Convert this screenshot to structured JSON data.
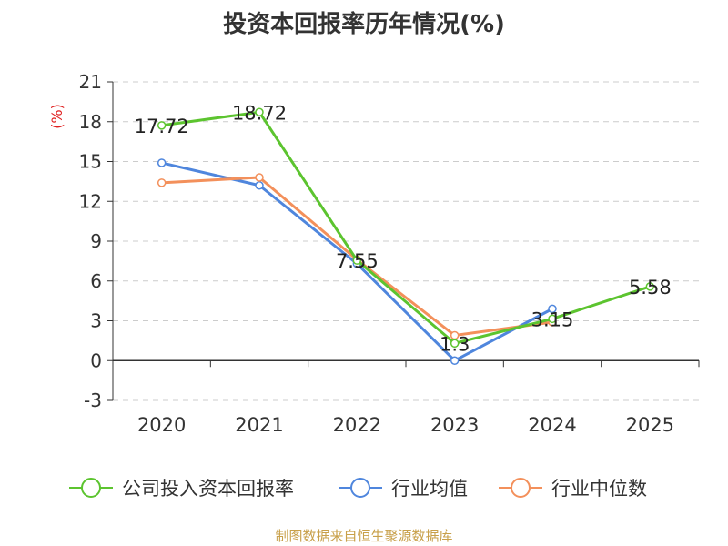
{
  "chart_data": {
    "type": "line",
    "title": "投资本回报率历年情况(%)",
    "ylabel": "(%)",
    "categories": [
      "2020",
      "2021",
      "2022",
      "2023",
      "2024",
      "2025"
    ],
    "ylim": [
      -3,
      21
    ],
    "yticks": [
      "-3",
      "0",
      "3",
      "6",
      "9",
      "12",
      "15",
      "18",
      "21"
    ],
    "grid": true,
    "legend_position": "bottom",
    "series": [
      {
        "name": "公司投入资本回报率",
        "color": "#5cc42f",
        "values": [
          17.72,
          18.72,
          7.55,
          1.3,
          3.15,
          5.58
        ],
        "labels": [
          "17.72",
          "18.72",
          "7.55",
          "1.3",
          "3.15",
          "5.58"
        ]
      },
      {
        "name": "行业均值",
        "color": "#4f86dd",
        "values": [
          14.9,
          13.2,
          7.3,
          0.0,
          3.9,
          null
        ]
      },
      {
        "name": "行业中位数",
        "color": "#f3905b",
        "values": [
          13.4,
          13.8,
          7.6,
          1.9,
          2.9,
          null
        ]
      }
    ],
    "source": "制图数据来自恒生聚源数据库"
  }
}
